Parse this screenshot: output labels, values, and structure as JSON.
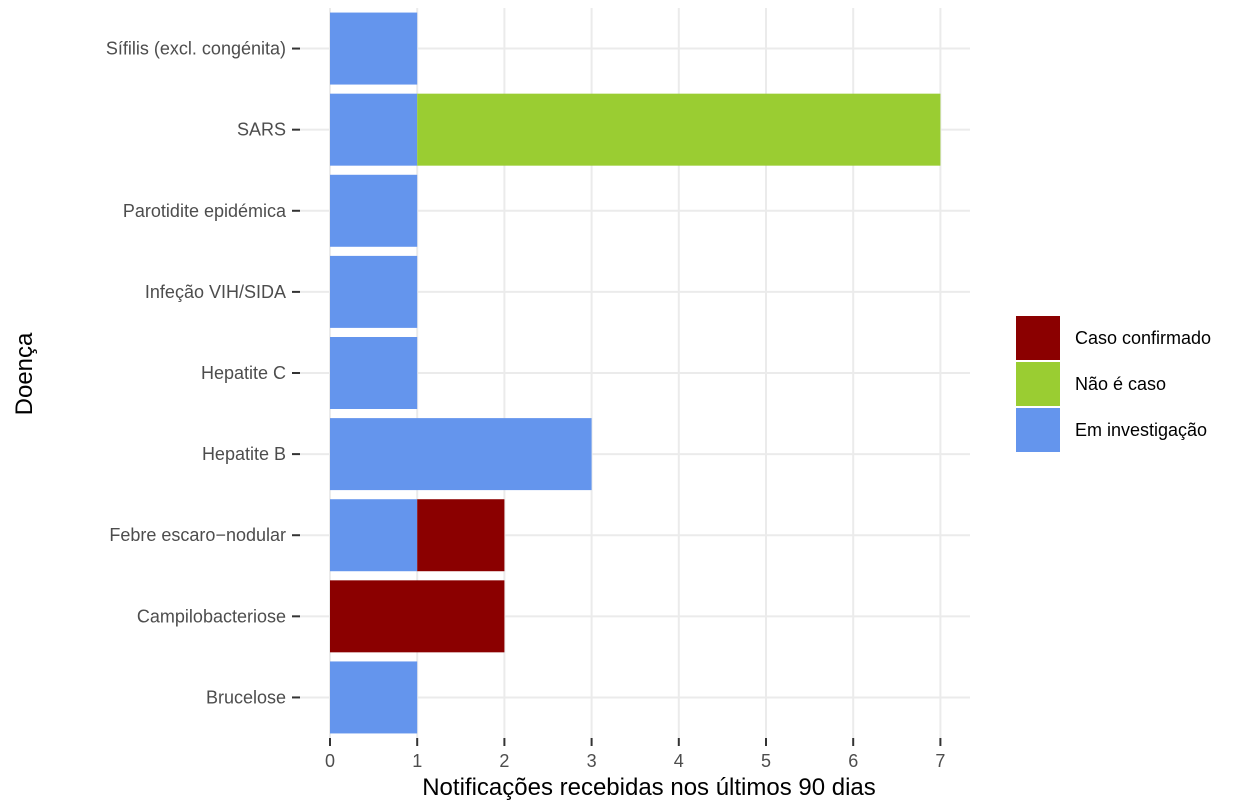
{
  "chart_data": {
    "type": "bar",
    "orientation": "horizontal",
    "stacked": true,
    "xlabel": "Notificações recebidas nos últimos 90 dias",
    "ylabel": "Doença",
    "xlim": [
      0,
      7
    ],
    "xticks": [
      "0",
      "1",
      "2",
      "3",
      "4",
      "5",
      "6",
      "7"
    ],
    "grid": true,
    "legend_position": "right",
    "categories": [
      "Sífilis (excl. congénita)",
      "SARS",
      "Parotidite epidémica",
      "Infeção VIH/SIDA",
      "Hepatite C",
      "Hepatite B",
      "Febre escaro−nodular",
      "Campilobacteriose",
      "Brucelose"
    ],
    "series": [
      {
        "name": "Em investigação",
        "color": "#6495ED",
        "values": [
          1,
          1,
          1,
          1,
          1,
          3,
          1,
          0,
          1
        ]
      },
      {
        "name": "Caso confirmado",
        "color": "#8B0000",
        "values": [
          0,
          0,
          0,
          0,
          0,
          0,
          1,
          2,
          0
        ]
      },
      {
        "name": "Não é caso",
        "color": "#9ACD32",
        "values": [
          0,
          6,
          0,
          0,
          0,
          0,
          0,
          0,
          0
        ]
      }
    ],
    "legend_order": [
      "Caso confirmado",
      "Não é caso",
      "Em investigação"
    ]
  }
}
